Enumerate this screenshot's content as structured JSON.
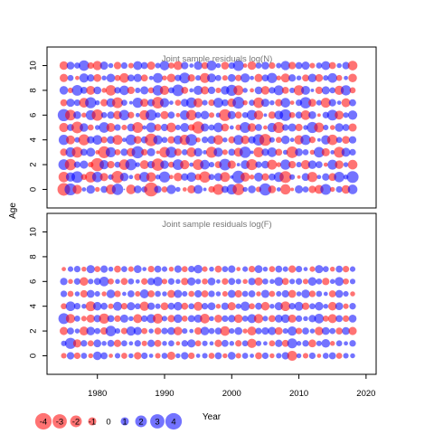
{
  "chart_data": {
    "type": "scatter",
    "description": "bubble plot of residuals by year and age",
    "ylabel": "Age",
    "xlabel": "Year",
    "xlim": [
      1972.5,
      2021.5
    ],
    "ylim": [
      -1.5,
      11.5
    ],
    "x_ticks": [
      1980,
      1990,
      2000,
      2010,
      2020
    ],
    "y_ticks": [
      0,
      2,
      4,
      6,
      8,
      10
    ],
    "years": [
      1975,
      2018
    ],
    "colors": {
      "positive": "#0000ff",
      "negative": "#ff0000",
      "alpha": 0.55
    },
    "legend": {
      "position": "bottom-left",
      "values": [
        -4,
        -3,
        -2,
        -1,
        0,
        1,
        2,
        3,
        4
      ],
      "labels": [
        "-4",
        "-3",
        "-2",
        "-1",
        "0",
        "1",
        "2",
        "3",
        "4"
      ]
    },
    "panels": [
      {
        "title": "Joint sample residuals log(N)",
        "ages": [
          0,
          10
        ],
        "residuals": [
          [
            -2.6,
            2.3,
            -1.4,
            0.3,
            1.2,
            -0.4,
            0.8,
            -1.6,
            2.1,
            0.0,
            -1.5,
            1.0,
            0.6,
            -3.2,
            0.9,
            -0.6,
            1.4,
            0.4,
            -0.3,
            -1.1,
            1.3,
            0.2,
            -0.7,
            -1.9,
            0.8,
            1.7,
            -2.2,
            0.4,
            1.0,
            -0.5,
            2.4,
            -1.0,
            0.3,
            -1.7,
            -0.2,
            1.1,
            0.6,
            -0.9,
            -1.3,
            1.9,
            -0.4,
            0.7,
            -1.2,
            1.5
          ],
          [
            -1.8,
            1.4,
            2.2,
            -0.6,
            -2.0,
            1.8,
            -1.1,
            0.5,
            -2.4,
            1.2,
            0.3,
            -0.8,
            1.7,
            -1.5,
            0.4,
            2.0,
            -0.3,
            -1.2,
            0.9,
            1.5,
            -0.7,
            -2.1,
            0.6,
            1.1,
            -1.6,
            0.2,
            2.6,
            -1.4,
            -0.4,
            1.3,
            -0.9,
            0.8,
            1.6,
            -2.3,
            0.5,
            -0.2,
            1.0,
            -1.7,
            0.3,
            0.9,
            -1.0,
            1.8,
            0.4,
            2.3
          ],
          [
            1.9,
            -2.1,
            0.7,
            1.1,
            -0.5,
            -2.8,
            1.4,
            -0.9,
            0.6,
            -1.8,
            2.1,
            0.4,
            -1.3,
            0.9,
            -2.5,
            1.2,
            -0.6,
            1.9,
            -1.4,
            0.3,
            -1.9,
            1.5,
            0.5,
            -0.8,
            2.2,
            -1.1,
            0.2,
            1.3,
            -2.0,
            0.7,
            1.0,
            -1.6,
            -0.4,
            1.7,
            -0.9,
            0.5,
            -1.4,
            1.2,
            0.8,
            -0.3,
            1.6,
            -1.2,
            0.4,
            -1.5
          ],
          [
            -0.9,
            1.6,
            -1.9,
            0.8,
            1.3,
            -0.3,
            -2.3,
            1.7,
            -0.6,
            0.9,
            -1.2,
            2.4,
            -0.7,
            1.1,
            -0.2,
            -1.8,
            2.0,
            -0.9,
            0.6,
            -1.5,
            1.2,
            0.3,
            -2.0,
            1.4,
            -0.5,
            0.8,
            -1.3,
            2.1,
            0.2,
            -1.7,
            0.9,
            1.5,
            -0.8,
            0.4,
            -2.2,
            1.0,
            0.6,
            -0.4,
            1.8,
            -1.1,
            0.3,
            -1.9,
            1.3,
            0.7
          ],
          [
            1.7,
            -1.3,
            0.5,
            -2.0,
            0.9,
            1.5,
            -0.7,
            1.0,
            -1.6,
            0.3,
            1.9,
            -1.0,
            0.8,
            -2.6,
            1.4,
            0.6,
            -0.9,
            1.3,
            -1.7,
            2.2,
            -0.4,
            0.7,
            1.1,
            -1.5,
            0.4,
            -0.8,
            1.6,
            -1.2,
            0.9,
            2.1,
            -2.3,
            0.5,
            -0.6,
            1.2,
            0.3,
            -1.4,
            1.7,
            -0.7,
            0.2,
            1.4,
            -1.8,
            0.6,
            -1.0,
            0.9
          ],
          [
            -1.4,
            0.8,
            -2.2,
            1.2,
            -0.6,
            0.4,
            1.8,
            -1.3,
            0.7,
            -0.5,
            1.0,
            -1.9,
            0.3,
            1.6,
            -0.8,
            0.9,
            -1.5,
            0.5,
            1.3,
            -0.7,
            -2.4,
            1.1,
            0.6,
            1.5,
            -1.0,
            0.3,
            -0.6,
            1.9,
            -1.2,
            0.8,
            -0.3,
            1.4,
            -2.0,
            0.7,
            1.1,
            -0.9,
            0.4,
            2.0,
            -1.6,
            0.5,
            -0.4,
            1.2,
            0.8,
            -1.1
          ],
          [
            2.4,
            -1.9,
            1.0,
            -0.4,
            1.6,
            -2.1,
            0.6,
            0.9,
            -1.2,
            1.8,
            -0.7,
            0.3,
            -1.6,
            2.0,
            0.5,
            -1.1,
            0.8,
            -0.3,
            1.5,
            -1.8,
            0.7,
            1.2,
            -0.5,
            0.4,
            -2.3,
            1.1,
            -0.8,
            0.6,
            1.7,
            -1.4,
            0.2,
            -0.9,
            1.3,
            2.2,
            -0.6,
            0.8,
            -1.5,
            1.0,
            -0.2,
            0.7,
            1.9,
            -1.3,
            0.5,
            1.4
          ],
          [
            -0.8,
            1.1,
            0.7,
            -1.5,
            2.0,
            0.4,
            -0.9,
            1.3,
            -1.9,
            0.6,
            0.2,
            1.7,
            -1.1,
            0.9,
            -2.2,
            1.4,
            0.3,
            -0.6,
            1.0,
            1.8,
            -1.4,
            0.5,
            -0.7,
            1.6,
            0.8,
            -1.2,
            2.3,
            -0.4,
            0.6,
            -1.8,
            1.1,
            0.4,
            -0.9,
            1.5,
            -0.3,
            0.7,
            2.1,
            -1.0,
            0.5,
            -1.6,
            0.9,
            0.3,
            -1.3,
            0.8
          ],
          [
            1.2,
            -0.5,
            1.9,
            0.8,
            -1.3,
            1.0,
            -0.4,
            -1.8,
            0.7,
            1.5,
            -0.9,
            0.5,
            1.1,
            -0.6,
            1.8,
            -1.4,
            0.6,
            2.2,
            -0.8,
            0.3,
            1.4,
            -1.1,
            0.9,
            -0.5,
            1.2,
            2.0,
            -1.6,
            0.4,
            -0.3,
            1.0,
            -1.2,
            0.7,
            1.6,
            -0.8,
            0.5,
            -1.7,
            1.3,
            0.2,
            -0.9,
            1.1,
            0.6,
            -1.4,
            1.7,
            -0.6
          ],
          [
            -1.1,
            0.6,
            -0.3,
            1.4,
            0.9,
            -1.0,
            0.4,
            1.2,
            -0.6,
            -1.5,
            0.8,
            1.1,
            -0.8,
            0.3,
            1.6,
            -0.4,
            -1.2,
            0.7,
            1.9,
            -0.9,
            0.5,
            -1.6,
            1.3,
            0.6,
            -0.5,
            1.0,
            -0.7,
            1.4,
            0.3,
            -1.1,
            0.8,
            1.7,
            -0.4,
            -1.3,
            0.9,
            0.4,
            -0.8,
            1.2,
            -1.0,
            0.5,
            1.5,
            -0.6,
            0.3,
            -1.2
          ],
          [
            -1.2,
            1.0,
            0.6,
            1.8,
            -0.7,
            -1.4,
            1.1,
            0.4,
            -0.9,
            0.7,
            -0.5,
            1.3,
            0.8,
            -1.1,
            0.5,
            1.5,
            -0.6,
            -1.3,
            0.9,
            0.3,
            1.2,
            -0.8,
            1.6,
            0.4,
            -1.0,
            0.7,
            1.9,
            -0.3,
            -1.2,
            0.6,
            1.0,
            -0.7,
            0.5,
            1.4,
            -0.9,
            0.8,
            1.1,
            -0.5,
            0.6,
            1.3,
            -0.8,
            0.4,
            0.9,
            -1.5
          ]
        ]
      },
      {
        "title": "Joint sample residuals log(F)",
        "ages": [
          0,
          7
        ],
        "residuals": [
          [
            -0.5,
            0.9,
            -0.7,
            0.6,
            -0.4,
            1.2,
            0.8,
            -0.3,
            0.5,
            -0.6,
            0.4,
            -0.9,
            0.7,
            0.3,
            -0.5,
            0.6,
            -1.1,
            0.4,
            0.9,
            -0.7,
            0.3,
            0.5,
            -0.6,
            0.8,
            -0.4,
            1.0,
            -0.5,
            0.6,
            0.3,
            -0.8,
            0.7,
            -0.4,
            0.5,
            0.9,
            -1.6,
            0.4,
            -0.5,
            0.7,
            -0.3,
            0.6,
            0.8,
            -0.6,
            0.5,
            0.4
          ],
          [
            0.5,
            2.0,
            -1.1,
            0.7,
            -0.6,
            1.0,
            0.4,
            0.8,
            -0.9,
            0.6,
            0.3,
            0.7,
            -0.5,
            0.9,
            -0.8,
            0.4,
            0.6,
            -0.3,
            0.7,
            1.1,
            -0.6,
            0.5,
            0.3,
            -0.9,
            0.8,
            0.4,
            -0.7,
            0.6,
            -1.4,
            0.5,
            0.3,
            -0.6,
            0.9,
            -0.8,
            1.6,
            0.4,
            0.7,
            -1.0,
            0.5,
            1.2,
            -0.4,
            0.6,
            0.3,
            0.7
          ],
          [
            -1.1,
            0.8,
            0.4,
            -1.3,
            1.2,
            0.6,
            -0.9,
            1.8,
            0.5,
            -0.7,
            1.4,
            1.1,
            -0.6,
            0.4,
            -0.8,
            0.7,
            1.0,
            -1.2,
            0.5,
            0.3,
            -0.9,
            1.2,
            0.6,
            0.8,
            -1.5,
            0.5,
            1.0,
            -0.4,
            -1.3,
            0.7,
            0.9,
            1.1,
            -1.0,
            0.5,
            1.4,
            -0.7,
            0.8,
            0.4,
            -1.2,
            1.0,
            0.6,
            -0.8,
            1.0,
            -1.1
          ],
          [
            1.9,
            -1.4,
            0.6,
            -0.5,
            -1.1,
            0.9,
            -1.7,
            0.8,
            -0.7,
            1.1,
            0.4,
            -1.3,
            0.7,
            1.3,
            -1.6,
            0.5,
            -0.9,
            1.2,
            -0.6,
            0.8,
            1.1,
            -1.5,
            0.4,
            -1.0,
            0.7,
            0.9,
            -1.2,
            0.6,
            1.3,
            -1.4,
            0.5,
            -0.8,
            1.0,
            1.2,
            -1.1,
            0.7,
            0.4,
            0.9,
            1.5,
            -0.6,
            -1.3,
            0.8,
            -0.7,
            1.0
          ],
          [
            -0.6,
            1.5,
            0.7,
            0.4,
            -1.6,
            1.2,
            0.8,
            -0.5,
            1.3,
            -0.7,
            1.1,
            0.6,
            -1.4,
            0.9,
            0.5,
            -1.0,
            0.8,
            1.2,
            -0.8,
            0.6,
            -1.3,
            0.7,
            1.0,
            -0.4,
            0.9,
            -1.1,
            0.5,
            1.4,
            -0.6,
            0.8,
            -1.2,
            0.4,
            1.1,
            -1.5,
            0.7,
            1.3,
            -0.9,
            0.6,
            1.2,
            0.4,
            -1.2,
            1.0,
            -0.5,
            0.7
          ],
          [
            0.7,
            -0.6,
            0.4,
            -0.9,
            1.0,
            0.5,
            -0.4,
            1.2,
            -0.7,
            0.3,
            0.8,
            -0.5,
            1.3,
            -0.8,
            0.6,
            0.4,
            -1.0,
            1.1,
            0.5,
            -0.6,
            0.9,
            -0.8,
            0.7,
            0.4,
            -0.5,
            1.0,
            -0.9,
            0.6,
            0.8,
            -0.4,
            1.1,
            -0.6,
            0.5,
            0.9,
            -1.0,
            0.4,
            1.2,
            -0.7,
            0.6,
            0.3,
            -0.8,
            1.0,
            0.5,
            -0.4
          ],
          [
            0.9,
            -0.4,
            0.7,
            -1.2,
            0.5,
            0.8,
            1.5,
            -0.6,
            0.4,
            -0.8,
            0.6,
            0.3,
            -0.7,
            0.9,
            1.4,
            -0.5,
            0.7,
            0.4,
            -0.9,
            1.1,
            0.5,
            -0.6,
            1.0,
            0.3,
            -0.7,
            0.8,
            0.5,
            -0.4,
            0.9,
            -1.1,
            0.6,
            0.4,
            1.3,
            -0.8,
            0.5,
            0.7,
            -0.5,
            1.2,
            0.6,
            -0.9,
            0.4,
            1.3,
            -0.6,
            0.5
          ],
          [
            -0.3,
            0.5,
            0.7,
            -0.4,
            1.1,
            -0.6,
            0.9,
            0.4,
            -0.8,
            0.6,
            -0.5,
            1.0,
            0.3,
            -0.7,
            0.8,
            0.5,
            -0.4,
            0.9,
            -0.6,
            0.7,
            1.2,
            -0.5,
            0.4,
            -0.8,
            0.6,
            0.9,
            -0.3,
            0.5,
            -0.7,
            1.0,
            0.4,
            -0.6,
            0.8,
            0.5,
            -0.9,
            0.7,
            0.3,
            -0.5,
            1.1,
            0.6,
            -0.4,
            0.8,
            -0.7,
            0.5
          ]
        ]
      }
    ]
  }
}
